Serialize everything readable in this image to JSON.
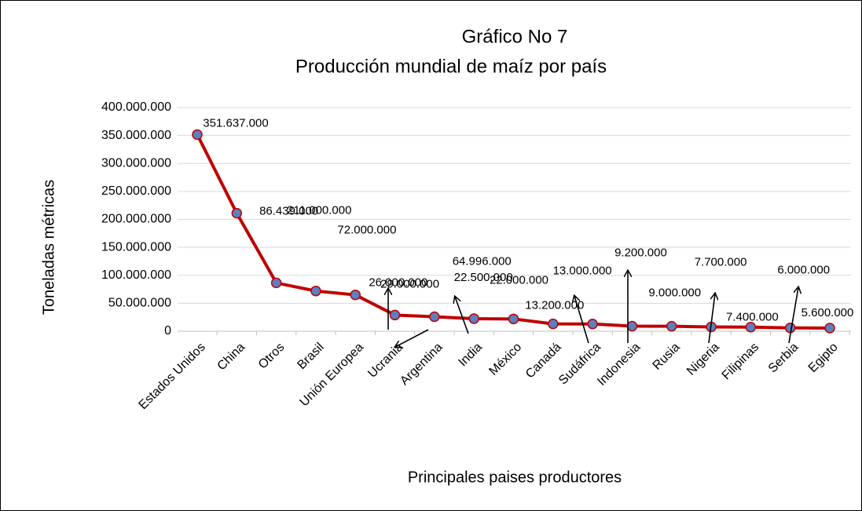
{
  "chart_data": {
    "type": "line",
    "title": "Gráfico No 7",
    "subtitle": "Producción mundial de maíz por país",
    "y_label": "Toneladas métricas",
    "x_label": "Principales paises productores",
    "categories": [
      "Estados Unidos",
      "China",
      "Otros",
      "Brasil",
      "Unión Europea",
      "Ucrania",
      "Argentina",
      "India",
      "México",
      "Canadá",
      "Sudáfrica",
      "Indonesia",
      "Rusia",
      "Nigeria",
      "Filipinas",
      "Serbia",
      "Egipto"
    ],
    "values": [
      351637000,
      211000000,
      86439000,
      72000000,
      64996000,
      29000000,
      26000000,
      22500000,
      22000000,
      13200000,
      13000000,
      9200000,
      9000000,
      7700000,
      7400000,
      6000000,
      5600000
    ],
    "value_labels": [
      "351.637.000",
      "211.000.000",
      "86.439.000",
      "72.000.000",
      "64.996.000",
      "29.000.000",
      "26.000.000",
      "22.500.000",
      "22.000.000",
      "13.200.000",
      "13.000.000",
      "9.200.000",
      "9.000.000",
      "7.700.000",
      "7.400.000",
      "6.000.000",
      "5.600.000"
    ],
    "color": "#c00000",
    "marker_color": "#5b7fc0",
    "ylim": [
      0,
      400000000
    ],
    "yticks": [
      0,
      {
        "value": 50000000,
        "label": "50.000.000"
      },
      {
        "value": 100000000,
        "label": "100.000.000"
      },
      {
        "value": 150000000,
        "label": "150.000.000"
      },
      {
        "value": 200000000,
        "label": "200.000.000"
      },
      {
        "value": 250000000,
        "label": "250.000.000"
      },
      {
        "value": 300000000,
        "label": "300.000.000"
      },
      {
        "value": 350000000,
        "label": "350.000.000"
      },
      {
        "value": 400000000,
        "label": "400.000.000"
      }
    ],
    "grid": true
  }
}
